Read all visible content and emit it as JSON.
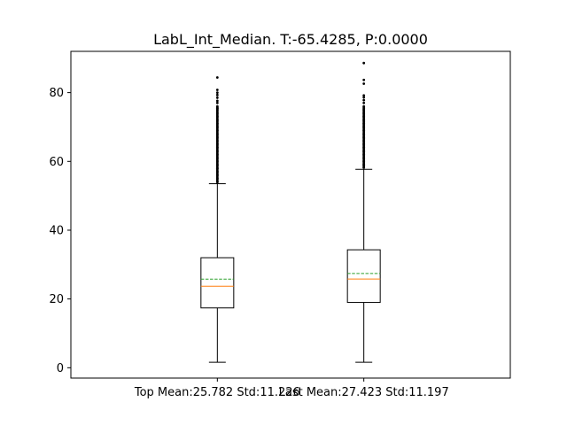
{
  "chart_data": {
    "type": "box",
    "title": "LabL_Int_Median. T:-65.4285, P:0.0000",
    "xlabel": "",
    "ylabel": "",
    "ylim": [
      -3,
      92
    ],
    "yticks": [
      0,
      20,
      40,
      60,
      80
    ],
    "grid": false,
    "categories": [
      "Top Mean:25.782 Std:11.226",
      "Last Mean:27.423 Std:11.197"
    ],
    "boxes": [
      {
        "label": "Top Mean:25.782 Std:11.226",
        "whisker_low": 1.6,
        "q1": 17.4,
        "median": 23.7,
        "mean": 25.782,
        "q3": 32.0,
        "whisker_high": 53.5,
        "outliers": [
          54,
          55,
          56,
          57,
          58,
          59,
          60,
          61,
          62,
          63,
          64,
          65,
          66,
          67,
          68,
          69,
          70,
          71,
          72,
          73,
          74,
          75,
          75.5,
          76,
          77,
          77.6,
          78.5,
          79.3,
          80,
          80.8,
          84.4
        ]
      },
      {
        "label": "Last Mean:27.423 Std:11.197",
        "whisker_low": 1.6,
        "q1": 19.0,
        "median": 25.8,
        "mean": 27.423,
        "q3": 34.3,
        "whisker_high": 57.7,
        "outliers": [
          58.2,
          59,
          60,
          61,
          62,
          63,
          64,
          65,
          66,
          67,
          68,
          69,
          70,
          71,
          72,
          73,
          74,
          75,
          76,
          77,
          77.8,
          78.6,
          79.2,
          82.6,
          83.7,
          88.6
        ]
      }
    ],
    "colors": {
      "box": "#000000",
      "median": "#ff7f0e",
      "mean": "#2ca02c",
      "outlier": "#000000"
    }
  }
}
